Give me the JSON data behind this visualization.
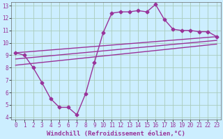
{
  "xlabel": "Windchill (Refroidissement éolien,°C)",
  "bg_color": "#cceeff",
  "grid_color": "#aaccbb",
  "line_color": "#993399",
  "xlim": [
    -0.5,
    23.5
  ],
  "ylim": [
    3.8,
    13.3
  ],
  "xticks": [
    0,
    1,
    2,
    3,
    4,
    5,
    6,
    7,
    8,
    9,
    10,
    11,
    12,
    13,
    14,
    15,
    16,
    17,
    18,
    19,
    20,
    21,
    22,
    23
  ],
  "yticks": [
    4,
    5,
    6,
    7,
    8,
    9,
    10,
    11,
    12,
    13
  ],
  "line1_x": [
    0,
    1,
    2,
    3,
    4,
    5,
    6,
    7,
    8,
    9,
    10,
    11,
    12,
    13,
    14,
    15,
    16,
    17,
    18,
    19,
    20,
    21,
    22,
    23
  ],
  "line1_y": [
    9.2,
    9.0,
    8.0,
    6.8,
    5.5,
    4.8,
    4.8,
    4.2,
    5.9,
    8.4,
    10.8,
    12.4,
    12.5,
    12.5,
    12.6,
    12.5,
    13.1,
    11.9,
    11.1,
    11.0,
    11.0,
    10.9,
    10.9,
    10.5
  ],
  "line2_x": [
    0,
    23
  ],
  "line2_y": [
    9.2,
    10.5
  ],
  "line3_x": [
    0,
    23
  ],
  "line3_y": [
    8.7,
    10.2
  ],
  "line4_x": [
    0,
    23
  ],
  "line4_y": [
    8.2,
    9.9
  ],
  "marker": "D",
  "markersize": 2.5,
  "linewidth": 1.0,
  "tick_fontsize": 5.5,
  "xlabel_fontsize": 6.5
}
